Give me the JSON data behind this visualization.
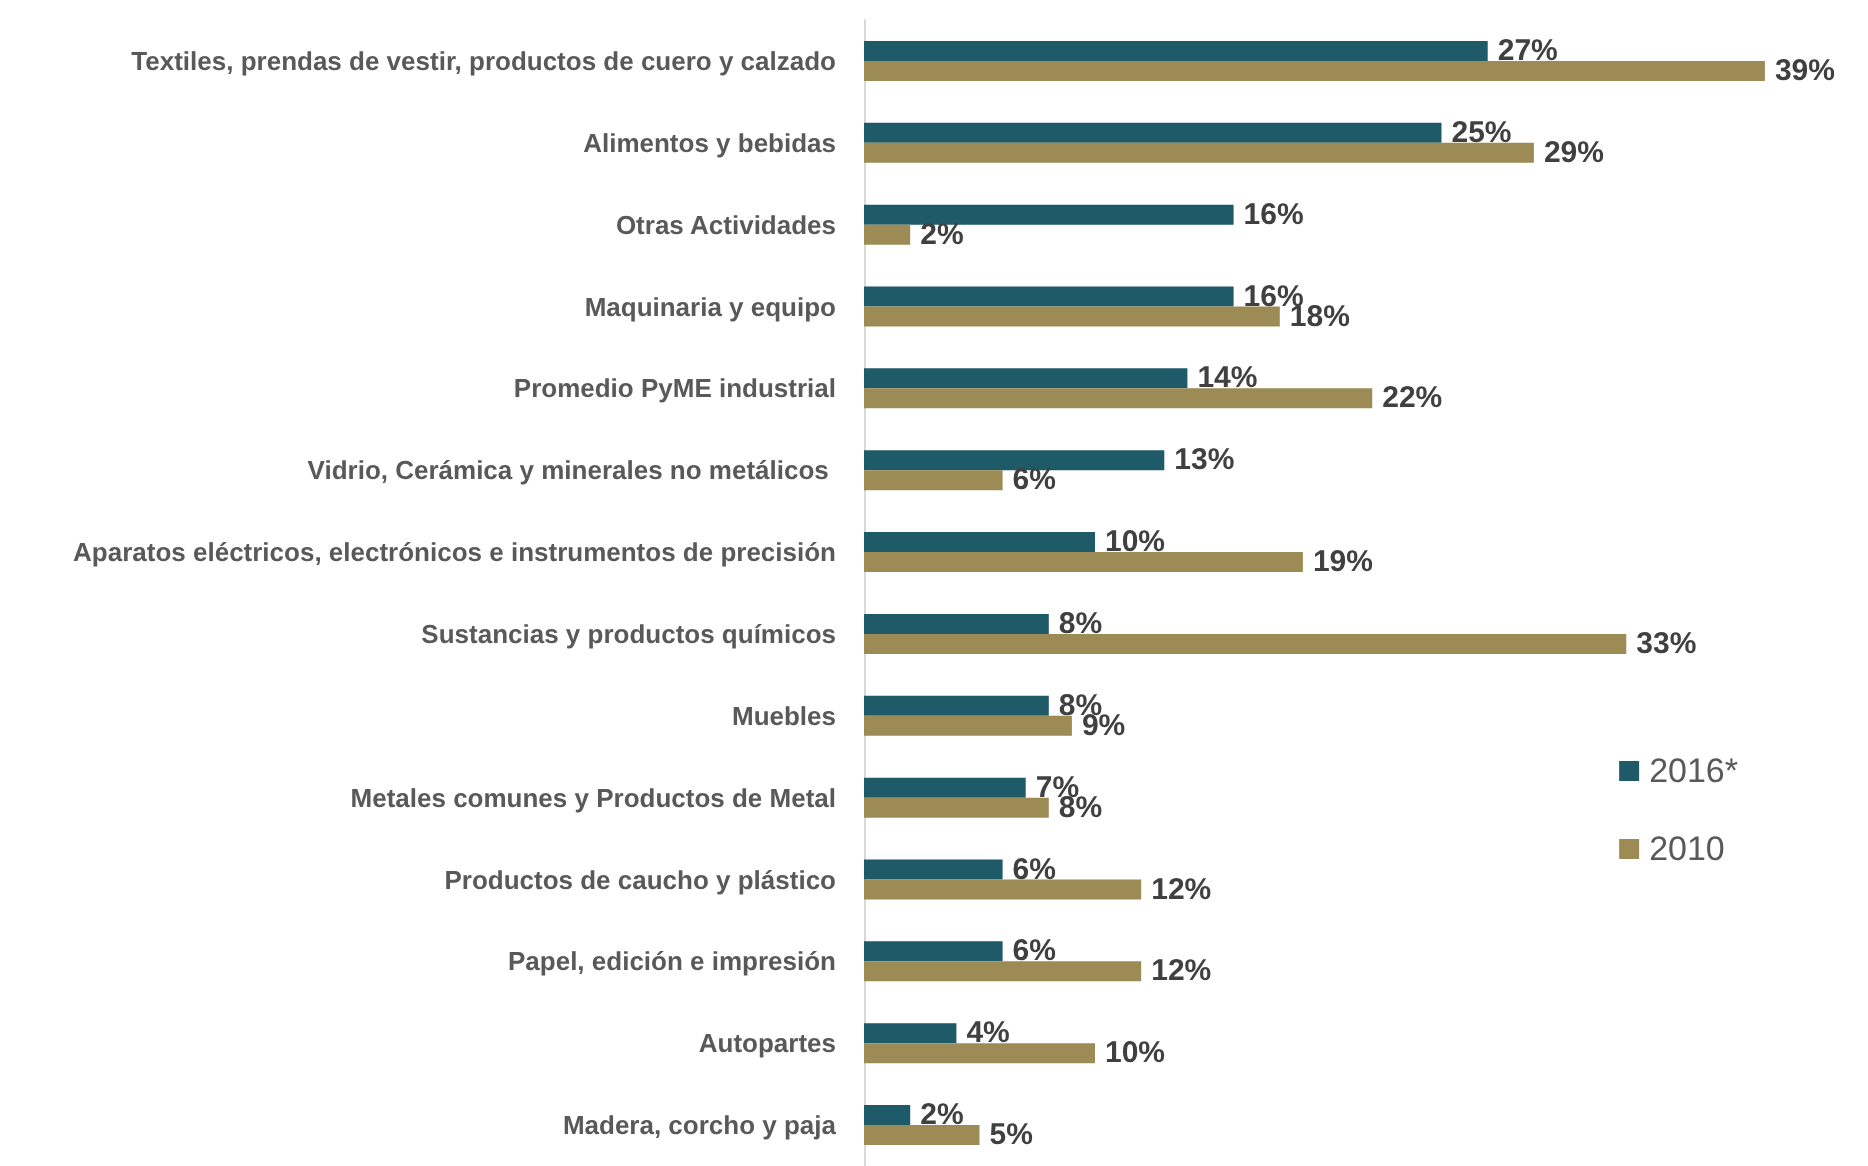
{
  "chart_data": {
    "type": "bar",
    "orientation": "horizontal",
    "categories": [
      "Textiles, prendas de vestir, productos de cuero y calzado",
      "Alimentos y bebidas",
      "Otras Actividades",
      "Maquinaria y equipo",
      "Promedio PyME industrial",
      "Vidrio, Cerámica y minerales no metálicos ",
      "Aparatos eléctricos, electrónicos e instrumentos de precisión",
      "Sustancias y productos químicos",
      "Muebles",
      "Metales comunes y Productos de Metal",
      "Productos de caucho y plástico",
      "Papel, edición e impresión",
      "Autopartes",
      "Madera, corcho y paja"
    ],
    "series": [
      {
        "name": "2016*",
        "color": "#1f5a68",
        "values": [
          27,
          25,
          16,
          16,
          14,
          13,
          10,
          8,
          8,
          7,
          6,
          6,
          4,
          2
        ],
        "value_labels": [
          "27%",
          "25%",
          "16%",
          "16%",
          "14%",
          "13%",
          "10%",
          "8%",
          "8%",
          "7%",
          "6%",
          "6%",
          "4%",
          "2%"
        ]
      },
      {
        "name": "2010",
        "color": "#9c8b54",
        "values": [
          39,
          29,
          2,
          18,
          22,
          6,
          19,
          33,
          9,
          8,
          12,
          12,
          10,
          5
        ],
        "value_labels": [
          "39%",
          "29%",
          "2%",
          "18%",
          "22%",
          "6%",
          "19%",
          "33%",
          "9%",
          "8%",
          "12%",
          "12%",
          "10%",
          "5%"
        ]
      }
    ],
    "legend": "right"
  }
}
